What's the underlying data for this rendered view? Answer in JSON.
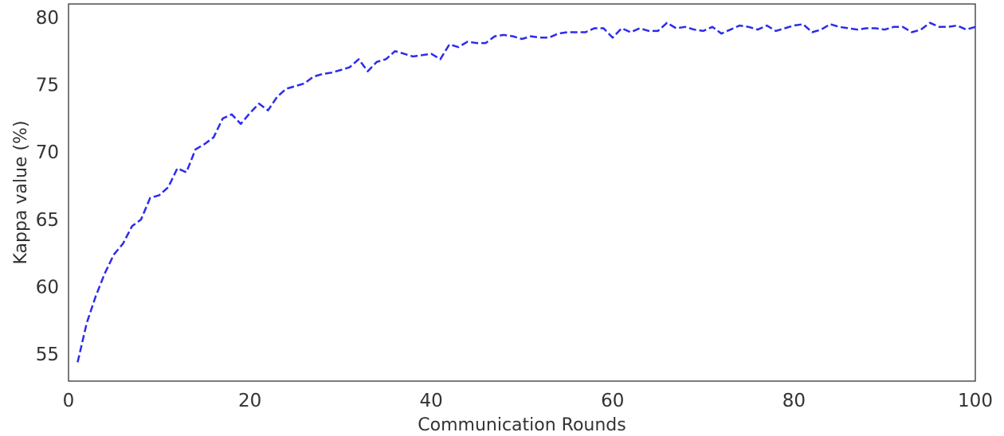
{
  "chart_data": {
    "type": "line",
    "title": "",
    "xlabel": "Communication Rounds",
    "ylabel": "Kappa value (%)",
    "xlim": [
      0,
      100
    ],
    "ylim": [
      53,
      81
    ],
    "xticks": [
      0,
      20,
      40,
      60,
      80,
      100
    ],
    "yticks": [
      55,
      60,
      65,
      70,
      75,
      80
    ],
    "grid": false,
    "legend": "none",
    "line_style": "dashed",
    "series": [
      {
        "color": "#2b2bef",
        "x": [
          1,
          2,
          3,
          4,
          5,
          6,
          7,
          8,
          9,
          10,
          11,
          12,
          13,
          14,
          15,
          16,
          17,
          18,
          19,
          20,
          21,
          22,
          23,
          24,
          25,
          26,
          27,
          28,
          29,
          30,
          31,
          32,
          33,
          34,
          35,
          36,
          37,
          38,
          39,
          40,
          41,
          42,
          43,
          44,
          45,
          46,
          47,
          48,
          49,
          50,
          51,
          52,
          53,
          54,
          55,
          56,
          57,
          58,
          59,
          60,
          61,
          62,
          63,
          64,
          65,
          66,
          67,
          68,
          69,
          70,
          71,
          72,
          73,
          74,
          75,
          76,
          77,
          78,
          79,
          80,
          81,
          82,
          83,
          84,
          85,
          86,
          87,
          88,
          89,
          90,
          91,
          92,
          93,
          94,
          95,
          96,
          97,
          98,
          99,
          100
        ],
        "y": [
          54.4,
          57.3,
          59.3,
          61.0,
          62.4,
          63.2,
          64.5,
          65.0,
          66.6,
          66.8,
          67.4,
          68.8,
          68.5,
          70.2,
          70.6,
          71.1,
          72.5,
          72.8,
          72.1,
          72.9,
          73.6,
          73.1,
          74.1,
          74.7,
          74.9,
          75.1,
          75.6,
          75.8,
          75.9,
          76.1,
          76.3,
          76.9,
          76.0,
          76.7,
          76.9,
          77.5,
          77.3,
          77.1,
          77.2,
          77.3,
          76.9,
          78.0,
          77.8,
          78.2,
          78.1,
          78.1,
          78.6,
          78.7,
          78.6,
          78.4,
          78.6,
          78.5,
          78.5,
          78.8,
          78.9,
          78.9,
          78.9,
          79.2,
          79.2,
          78.5,
          79.2,
          78.9,
          79.2,
          79.0,
          79.0,
          79.6,
          79.2,
          79.3,
          79.1,
          79.0,
          79.3,
          78.8,
          79.1,
          79.4,
          79.3,
          79.1,
          79.4,
          79.0,
          79.2,
          79.4,
          79.5,
          78.9,
          79.1,
          79.5,
          79.3,
          79.2,
          79.1,
          79.2,
          79.2,
          79.1,
          79.3,
          79.3,
          78.9,
          79.1,
          79.6,
          79.3,
          79.3,
          79.4,
          79.1,
          79.3
        ]
      }
    ]
  }
}
